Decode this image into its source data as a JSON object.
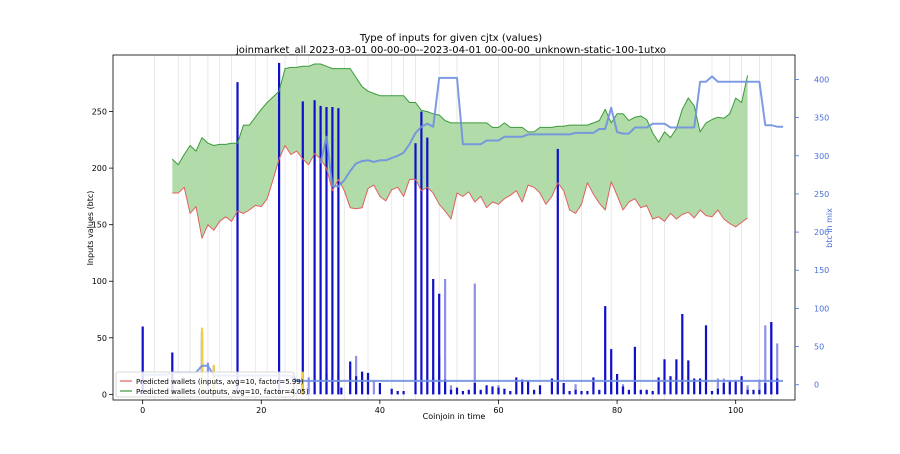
{
  "chart_data": {
    "type": "bar+line+area",
    "title": "Type of inputs for given cjtx (values)",
    "subtitle": "joinmarket_all 2023-03-01 00-00-00--2023-04-01 00-00-00_unknown-static-100-1utxo",
    "xlabel": "Coinjoin in time",
    "ylabel": "Inputs values (btc)",
    "y2label": "btc in mix",
    "xlim": [
      -5,
      110
    ],
    "ylim": [
      -5,
      300
    ],
    "y2lim": [
      -20,
      432
    ],
    "xticks": [
      0,
      20,
      40,
      60,
      80,
      100
    ],
    "yticks": [
      0,
      50,
      100,
      150,
      200,
      250
    ],
    "y2ticks": [
      0,
      50,
      100,
      150,
      200,
      250,
      300,
      350,
      400
    ],
    "legend": {
      "placement": "lower-left",
      "entries": [
        {
          "label": "Predicted wallets (inputs, avg=10, factor=5.99)",
          "color": "#e06060"
        },
        {
          "label": "Predicted wallets (outputs, avg=10, factor=4.05)",
          "color": "#3a9a3a"
        }
      ]
    },
    "colors": {
      "bars_dark": "#1010c8",
      "bars_light": "#9090e8",
      "band_fill": "#a8d8a0",
      "inputs_line": "#e06060",
      "outputs_line": "#3a9a3a",
      "mix_line": "#7090e0",
      "highlight": "#f0d040",
      "vline": "#e4e4e4"
    },
    "bars_dark": [
      [
        0,
        60
      ],
      [
        5,
        37
      ],
      [
        10,
        55
      ],
      [
        16,
        276
      ],
      [
        23,
        293
      ],
      [
        27,
        259
      ],
      [
        29,
        260
      ],
      [
        30,
        255
      ],
      [
        31,
        254
      ],
      [
        32,
        254
      ],
      [
        33,
        253
      ],
      [
        33.5,
        6
      ],
      [
        35,
        29
      ],
      [
        36,
        16
      ],
      [
        37,
        20
      ],
      [
        38,
        19
      ],
      [
        40,
        10
      ],
      [
        42,
        5
      ],
      [
        43,
        3
      ],
      [
        44,
        3
      ],
      [
        46,
        222
      ],
      [
        47,
        250
      ],
      [
        48,
        227
      ],
      [
        49,
        102
      ],
      [
        50,
        89
      ],
      [
        51,
        13
      ],
      [
        52,
        4
      ],
      [
        53,
        6
      ],
      [
        54,
        3
      ],
      [
        55,
        4
      ],
      [
        56,
        10
      ],
      [
        57,
        4
      ],
      [
        58,
        8
      ],
      [
        59,
        7
      ],
      [
        60,
        6
      ],
      [
        61,
        5
      ],
      [
        62,
        3
      ],
      [
        63,
        15
      ],
      [
        64,
        13
      ],
      [
        65,
        12
      ],
      [
        66,
        4
      ],
      [
        67,
        8
      ],
      [
        69,
        14
      ],
      [
        70,
        217
      ],
      [
        71,
        10
      ],
      [
        72,
        3
      ],
      [
        73,
        4
      ],
      [
        74,
        3
      ],
      [
        75,
        3
      ],
      [
        76,
        15
      ],
      [
        77,
        4
      ],
      [
        78,
        78
      ],
      [
        79,
        40
      ],
      [
        80,
        18
      ],
      [
        81,
        7
      ],
      [
        82,
        4
      ],
      [
        83,
        42
      ],
      [
        84,
        4
      ],
      [
        85,
        4
      ],
      [
        86,
        3
      ],
      [
        87,
        15
      ],
      [
        88,
        31
      ],
      [
        89,
        16
      ],
      [
        90,
        31
      ],
      [
        91,
        71
      ],
      [
        92,
        30
      ],
      [
        93,
        14
      ],
      [
        94,
        14
      ],
      [
        95,
        61
      ],
      [
        96,
        3
      ],
      [
        97,
        5
      ],
      [
        98,
        10
      ],
      [
        99,
        12
      ],
      [
        100,
        12
      ],
      [
        101,
        16
      ],
      [
        102,
        4
      ],
      [
        103,
        4
      ],
      [
        104,
        4
      ],
      [
        105,
        10
      ],
      [
        106,
        64
      ],
      [
        107,
        14
      ]
    ],
    "bars_light": [
      [
        10,
        48
      ],
      [
        11,
        28
      ],
      [
        12,
        25
      ],
      [
        28,
        15
      ],
      [
        29,
        8
      ],
      [
        31,
        18
      ],
      [
        32,
        14
      ],
      [
        33,
        21
      ],
      [
        36,
        34
      ],
      [
        37,
        20
      ],
      [
        38,
        18
      ],
      [
        39,
        12
      ],
      [
        49,
        15
      ],
      [
        50,
        34
      ],
      [
        51,
        102
      ],
      [
        52,
        8
      ],
      [
        56,
        98
      ],
      [
        60,
        8
      ],
      [
        70,
        7
      ],
      [
        73,
        9
      ],
      [
        79,
        10
      ],
      [
        81,
        9
      ],
      [
        83,
        10
      ],
      [
        90,
        15
      ],
      [
        97,
        14
      ],
      [
        98,
        14
      ],
      [
        102,
        8
      ],
      [
        104,
        13
      ],
      [
        105,
        61
      ],
      [
        106,
        63
      ],
      [
        107,
        45
      ]
    ],
    "bars_highlight": [
      [
        10,
        59
      ],
      [
        12,
        26
      ],
      [
        27,
        20
      ]
    ],
    "vlines": [
      2,
      6,
      8,
      11,
      13,
      15,
      19,
      21,
      24,
      26,
      28,
      34,
      38,
      42,
      44,
      46,
      50,
      53,
      60,
      67,
      71,
      74,
      79,
      84,
      86,
      88,
      96,
      99,
      101,
      104,
      106
    ],
    "inputs_series": {
      "x": [
        5,
        6,
        7,
        8,
        9,
        10,
        11,
        12,
        13,
        14,
        15,
        16,
        17,
        18,
        19,
        20,
        21,
        22,
        23,
        24,
        25,
        26,
        27,
        28,
        29,
        30,
        31,
        32,
        33,
        34,
        35,
        36,
        37,
        38,
        39,
        40,
        41,
        42,
        43,
        44,
        45,
        46,
        47,
        48,
        49,
        50,
        51,
        52,
        53,
        54,
        55,
        56,
        57,
        58,
        59,
        60,
        61,
        62,
        63,
        64,
        65,
        66,
        67,
        68,
        69,
        70,
        71,
        72,
        73,
        74,
        75,
        76,
        77,
        78,
        79,
        80,
        81,
        82,
        83,
        84,
        85,
        86,
        87,
        88,
        89,
        90,
        91,
        92,
        93,
        94,
        95,
        96,
        97,
        98,
        99,
        100,
        101,
        102
      ],
      "values": [
        178,
        178,
        183,
        160,
        166,
        138,
        150,
        145,
        153,
        157,
        153,
        162,
        160,
        163,
        167,
        166,
        173,
        190,
        208,
        220,
        212,
        215,
        208,
        203,
        213,
        208,
        200,
        180,
        190,
        180,
        165,
        164,
        165,
        182,
        185,
        175,
        171,
        181,
        183,
        175,
        190,
        190,
        180,
        183,
        178,
        168,
        162,
        155,
        178,
        175,
        179,
        170,
        175,
        165,
        170,
        168,
        173,
        176,
        180,
        170,
        185,
        183,
        178,
        168,
        175,
        187,
        180,
        163,
        160,
        168,
        187,
        177,
        169,
        163,
        188,
        176,
        163,
        170,
        173,
        165,
        167,
        155,
        157,
        153,
        160,
        155,
        159,
        161,
        156,
        163,
        158,
        157,
        163,
        155,
        151,
        148,
        152,
        156
      ]
    },
    "outputs_series": {
      "x": [
        5,
        6,
        7,
        8,
        9,
        10,
        11,
        12,
        13,
        14,
        15,
        16,
        17,
        18,
        19,
        20,
        21,
        22,
        23,
        24,
        25,
        26,
        27,
        28,
        29,
        30,
        31,
        32,
        33,
        34,
        35,
        36,
        37,
        38,
        39,
        40,
        41,
        42,
        43,
        44,
        45,
        46,
        47,
        48,
        49,
        50,
        51,
        52,
        53,
        54,
        55,
        56,
        57,
        58,
        59,
        60,
        61,
        62,
        63,
        64,
        65,
        66,
        67,
        68,
        69,
        70,
        71,
        72,
        73,
        74,
        75,
        76,
        77,
        78,
        79,
        80,
        81,
        82,
        83,
        84,
        85,
        86,
        87,
        88,
        89,
        90,
        91,
        92,
        93,
        94,
        95,
        96,
        97,
        98,
        99,
        100,
        101,
        102
      ],
      "values": [
        208,
        203,
        212,
        220,
        215,
        227,
        222,
        220,
        221,
        221,
        222,
        222,
        238,
        238,
        245,
        252,
        258,
        263,
        268,
        288,
        289,
        289,
        290,
        290,
        292,
        292,
        290,
        288,
        288,
        288,
        288,
        280,
        272,
        268,
        266,
        264,
        264,
        264,
        264,
        264,
        258,
        258,
        251,
        250,
        248,
        247,
        242,
        240,
        240,
        240,
        240,
        240,
        240,
        240,
        236,
        236,
        240,
        236,
        236,
        236,
        232,
        232,
        236,
        236,
        236,
        237,
        237,
        238,
        238,
        238,
        238,
        240,
        242,
        252,
        240,
        248,
        248,
        242,
        245,
        246,
        243,
        231,
        223,
        232,
        227,
        235,
        252,
        262,
        255,
        232,
        240,
        243,
        245,
        244,
        248,
        262,
        258,
        282
      ]
    },
    "mix_series": {
      "x": [
        0,
        1,
        2,
        3,
        4,
        5,
        6,
        7,
        8,
        9,
        10,
        11,
        12,
        13,
        14,
        15,
        16,
        17,
        18,
        19,
        20,
        21,
        22,
        23,
        24,
        25,
        26,
        27,
        28,
        29,
        30,
        31,
        32,
        33,
        34,
        35,
        36,
        37,
        38,
        39,
        40,
        41,
        42,
        43,
        44,
        45,
        46,
        47,
        48,
        49,
        50,
        51,
        52,
        53,
        54,
        55,
        56,
        57,
        58,
        59,
        60,
        61,
        62,
        63,
        64,
        65,
        66,
        67,
        68,
        69,
        70,
        71,
        72,
        73,
        74,
        75,
        76,
        77,
        78,
        79,
        80,
        81,
        82,
        83,
        84,
        85,
        86,
        87,
        88,
        89,
        90,
        91,
        92,
        93,
        94,
        95,
        96,
        97,
        98,
        99,
        100,
        101,
        102,
        103,
        104,
        105,
        106,
        107,
        108
      ],
      "values": [
        13,
        13,
        13,
        13,
        13,
        16,
        16,
        16,
        16,
        16,
        25,
        25,
        12,
        12,
        12,
        12,
        12,
        12,
        12,
        12,
        12,
        12,
        12,
        12,
        12,
        12,
        5,
        5,
        5,
        5,
        5,
        5,
        5,
        5,
        5,
        5,
        5,
        5,
        5,
        5,
        5,
        5,
        5,
        5,
        5,
        5,
        5,
        5,
        5,
        5,
        5,
        5,
        5,
        5,
        5,
        5,
        5,
        5,
        5,
        5,
        5,
        5,
        5,
        5,
        5,
        5,
        5,
        5,
        5,
        5,
        5,
        5,
        5,
        5,
        5,
        5,
        5,
        5,
        5,
        5,
        5,
        5,
        5,
        5,
        5,
        5,
        5,
        5,
        5,
        5,
        5,
        5,
        5,
        5,
        5,
        5,
        5,
        5,
        5,
        5,
        5,
        5,
        5,
        5,
        5,
        5,
        5,
        5,
        5
      ]
    },
    "mix_upper_series": {
      "x": [
        30,
        31,
        32,
        33,
        34,
        35,
        36,
        37,
        38,
        39,
        40,
        41,
        42,
        43,
        44,
        45,
        46,
        47,
        48,
        49,
        50,
        51,
        52,
        53,
        54,
        55,
        56,
        57,
        58,
        59,
        60,
        61,
        62,
        63,
        64,
        65,
        66,
        67,
        68,
        69,
        70,
        71,
        72,
        73,
        74,
        75,
        76,
        77,
        78,
        79,
        80,
        81,
        82,
        83,
        84,
        85,
        86,
        87,
        88,
        89,
        90,
        91,
        92,
        93,
        94,
        95,
        96,
        97,
        98,
        99,
        100,
        101,
        102,
        103,
        104,
        105,
        106,
        107,
        108
      ],
      "values": [
        290,
        325,
        260,
        260,
        268,
        280,
        290,
        293,
        294,
        292,
        294,
        294,
        297,
        300,
        304,
        315,
        330,
        338,
        342,
        338,
        402,
        402,
        402,
        402,
        315,
        315,
        315,
        315,
        320,
        320,
        320,
        325,
        325,
        325,
        325,
        328,
        328,
        328,
        328,
        328,
        328,
        328,
        328,
        330,
        330,
        330,
        330,
        335,
        335,
        363,
        331,
        329,
        329,
        337,
        337,
        337,
        342,
        342,
        342,
        337,
        337,
        337,
        337,
        337,
        397,
        397,
        404,
        397,
        397,
        397,
        397,
        397,
        397,
        397,
        397,
        340,
        340,
        338,
        338
      ]
    }
  }
}
